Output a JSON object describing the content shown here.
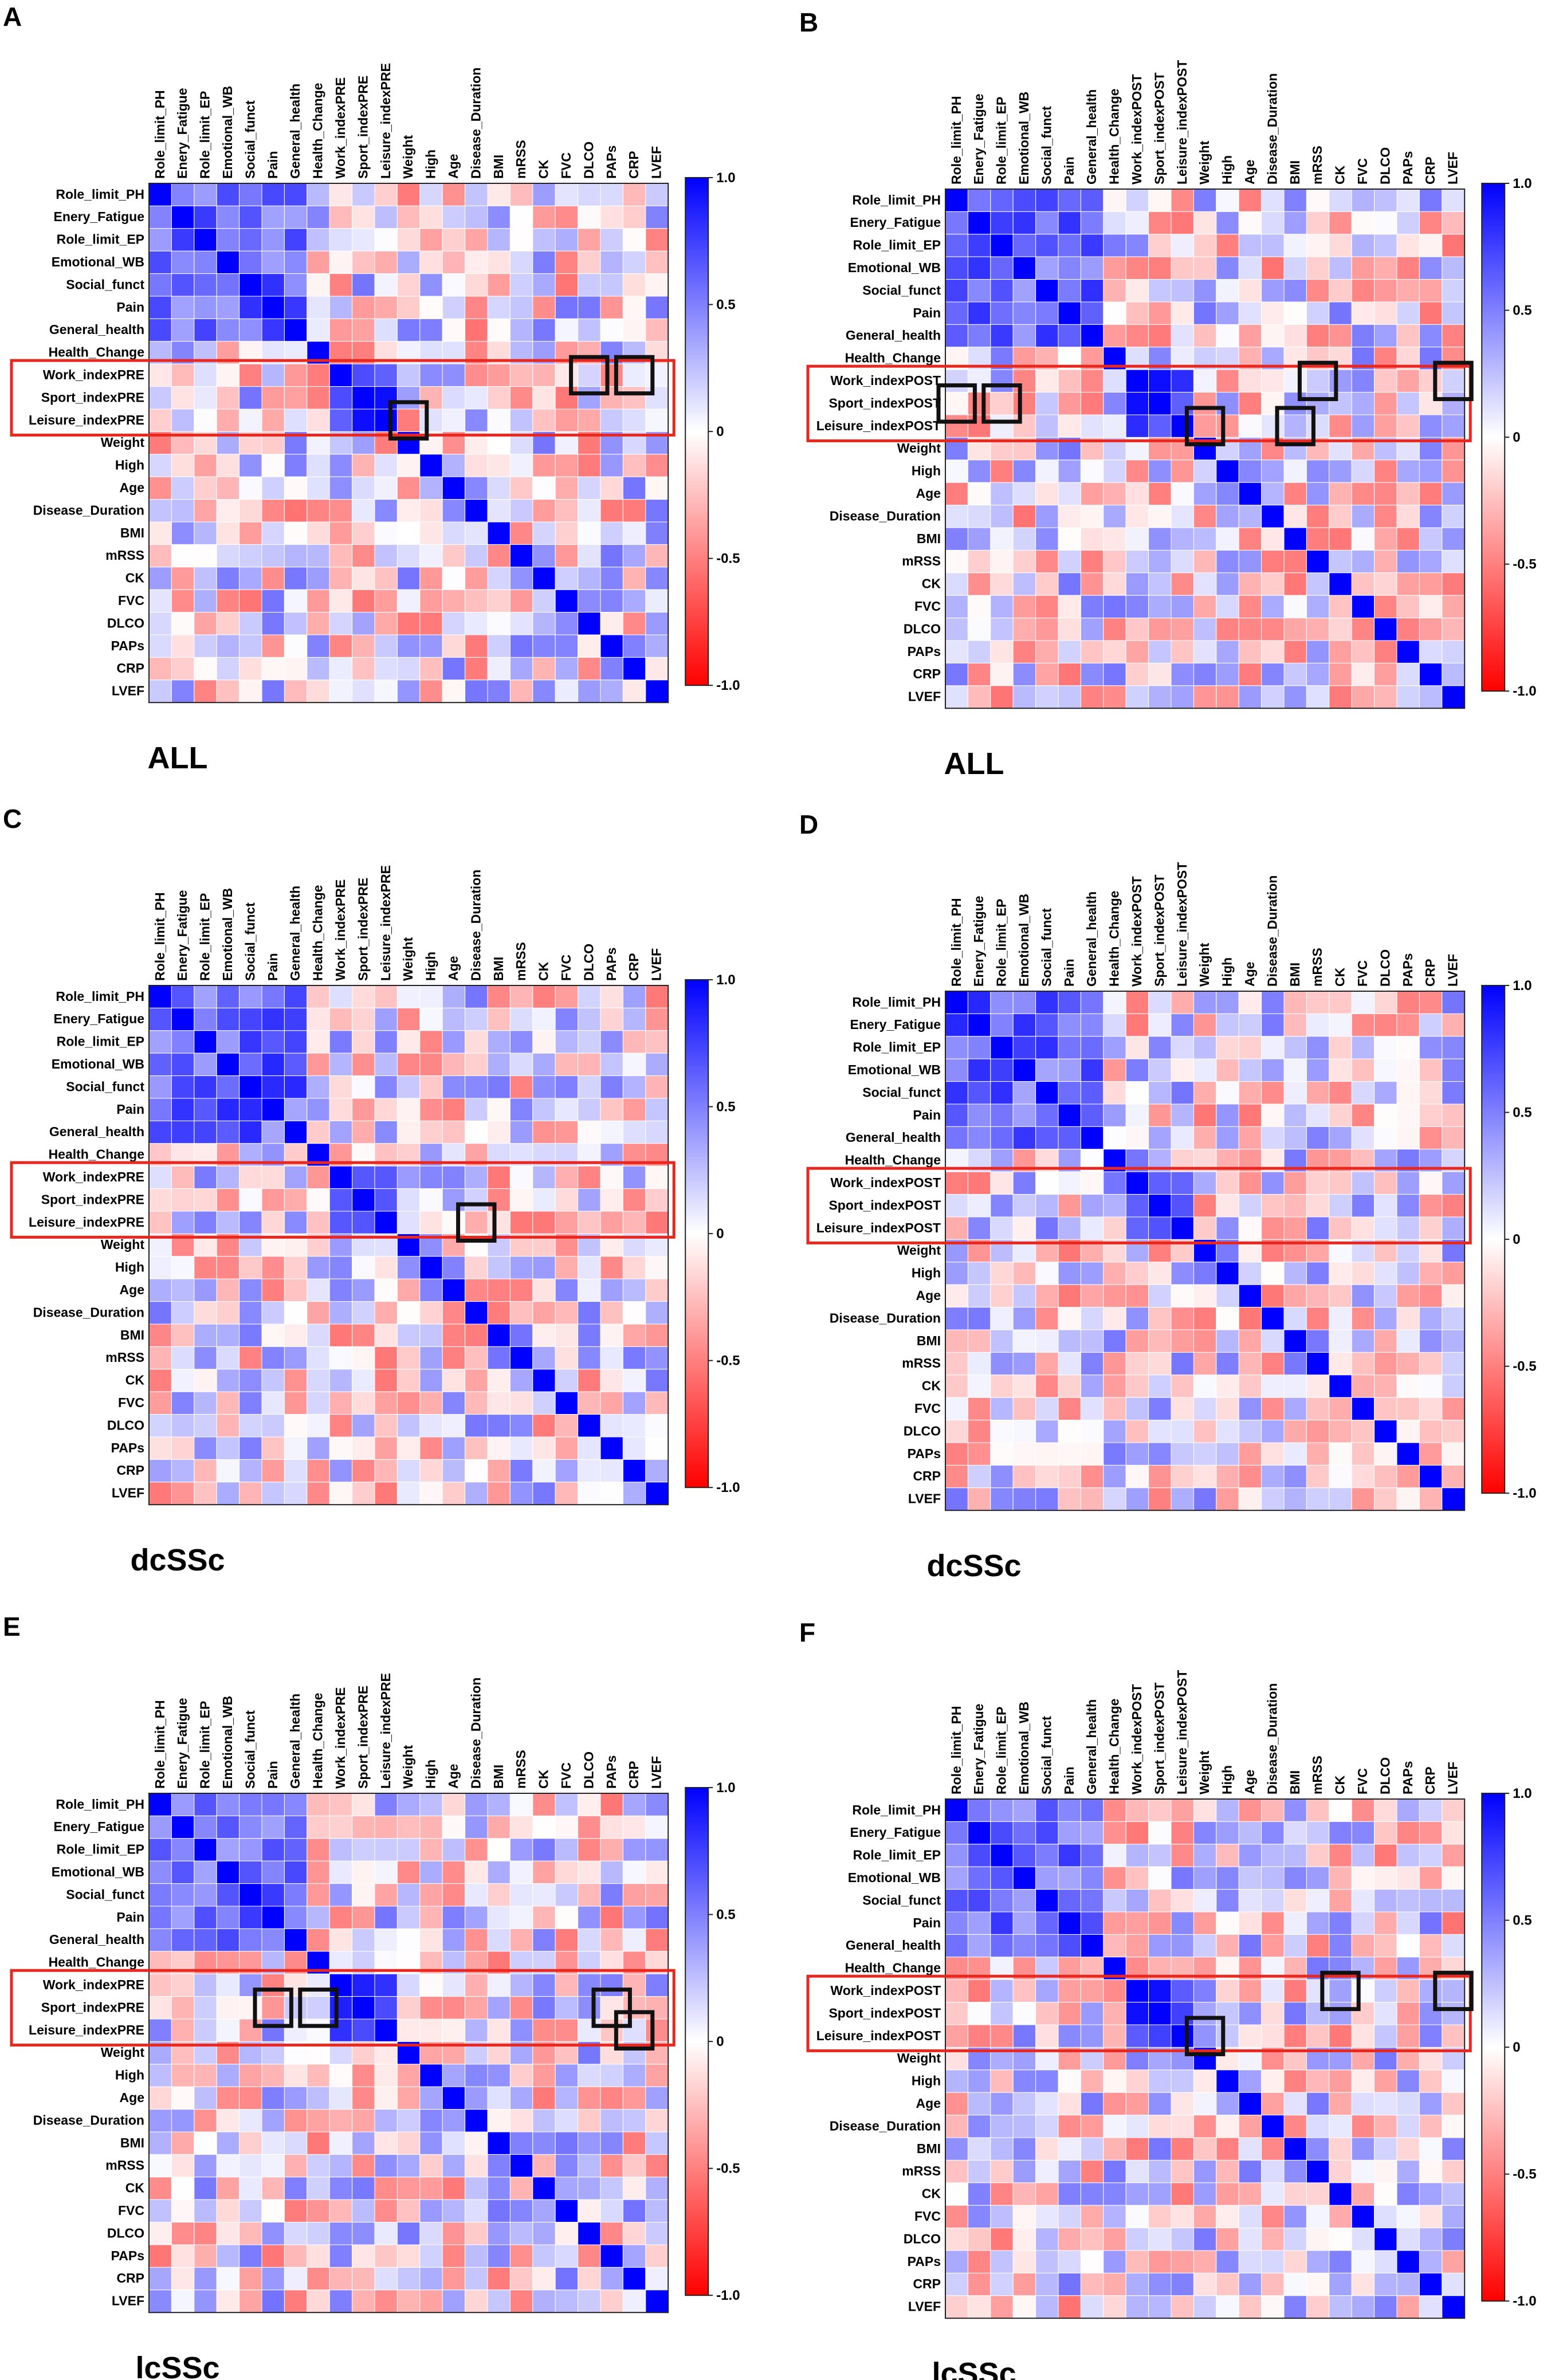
{
  "figure": {
    "row_labels_pre": [
      "Role_limit_PH",
      "Enery_Fatigue",
      "Role_limit_EP",
      "Emotional_WB",
      "Social_funct",
      "Pain",
      "General_health",
      "Health_Change",
      "Work_indexPRE",
      "Sport_indexPRE",
      "Leisure_indexPRE",
      "Weight",
      "High",
      "Age",
      "Disease_Duration",
      "BMI",
      "mRSS",
      "CK",
      "FVC",
      "DLCO",
      "PAPs",
      "CRP",
      "LVEF"
    ],
    "row_labels_post": [
      "Role_limit_PH",
      "Enery_Fatigue",
      "Role_limit_EP",
      "Emotional_WB",
      "Social_funct",
      "Pain",
      "General_health",
      "Health_Change",
      "Work_indexPOST",
      "Sport_indexPOST",
      "Leisure_indexPOST",
      "Weight",
      "High",
      "Age",
      "Disease_Duration",
      "BMI",
      "mRSS",
      "CK",
      "FVC",
      "DLCO",
      "PAPs",
      "CRP",
      "LVEF"
    ],
    "colorbar_ticks": [
      "1.0",
      "0.5",
      "0",
      "-0.5",
      "-1.0"
    ],
    "colors": {
      "positive": "#0000ff",
      "neutral": "#ffffff",
      "negative": "#ff0000",
      "highlight_box": "#e8281e",
      "cell_box": "#111111"
    }
  },
  "chart_data": [
    {
      "panel": "A",
      "subtitle": "ALL",
      "type": "heatmap",
      "variables": "pre",
      "value_range": [
        -1,
        1
      ],
      "seed": 11,
      "highlight_rows": [
        "Work_indexPRE",
        "Sport_indexPRE",
        "Leisure_indexPRE"
      ],
      "boxed_cells": [
        {
          "row": 8,
          "col": 19
        },
        {
          "row": 8,
          "col": 21
        },
        {
          "row": 10,
          "col": 11
        }
      ]
    },
    {
      "panel": "B",
      "subtitle": "ALL",
      "type": "heatmap",
      "variables": "post",
      "value_range": [
        -1,
        1
      ],
      "seed": 23,
      "highlight_rows": [
        "Work_indexPOST",
        "Sport_indexPOST",
        "Leisure_indexPOST"
      ],
      "boxed_cells": [
        {
          "row": 9,
          "col": 0
        },
        {
          "row": 9,
          "col": 2
        },
        {
          "row": 10,
          "col": 11
        },
        {
          "row": 8,
          "col": 16
        },
        {
          "row": 10,
          "col": 15
        },
        {
          "row": 8,
          "col": 22
        }
      ]
    },
    {
      "panel": "C",
      "subtitle": "dcSSc",
      "type": "heatmap",
      "variables": "pre",
      "value_range": [
        -1,
        1
      ],
      "seed": 37,
      "highlight_rows": [
        "Work_indexPRE",
        "Sport_indexPRE",
        "Leisure_indexPRE"
      ],
      "boxed_cells": [
        {
          "row": 10,
          "col": 14
        }
      ]
    },
    {
      "panel": "D",
      "subtitle": "dcSSc",
      "type": "heatmap",
      "variables": "post",
      "value_range": [
        -1,
        1
      ],
      "seed": 41,
      "highlight_rows": [
        "Work_indexPOST",
        "Sport_indexPOST",
        "Leisure_indexPOST"
      ],
      "boxed_cells": []
    },
    {
      "panel": "E",
      "subtitle": "lcSSc",
      "type": "heatmap",
      "variables": "pre",
      "value_range": [
        -1,
        1
      ],
      "seed": 53,
      "highlight_rows": [
        "Work_indexPRE",
        "Sport_indexPRE",
        "Leisure_indexPRE"
      ],
      "boxed_cells": [
        {
          "row": 9,
          "col": 5
        },
        {
          "row": 9,
          "col": 7
        },
        {
          "row": 9,
          "col": 20
        },
        {
          "row": 10,
          "col": 21
        }
      ]
    },
    {
      "panel": "F",
      "subtitle": "lcSSc",
      "type": "heatmap",
      "variables": "post",
      "value_range": [
        -1,
        1
      ],
      "seed": 67,
      "highlight_rows": [
        "Work_indexPOST",
        "Sport_indexPOST",
        "Leisure_indexPOST"
      ],
      "boxed_cells": [
        {
          "row": 10,
          "col": 11
        },
        {
          "row": 8,
          "col": 17
        },
        {
          "row": 8,
          "col": 22
        }
      ]
    }
  ]
}
